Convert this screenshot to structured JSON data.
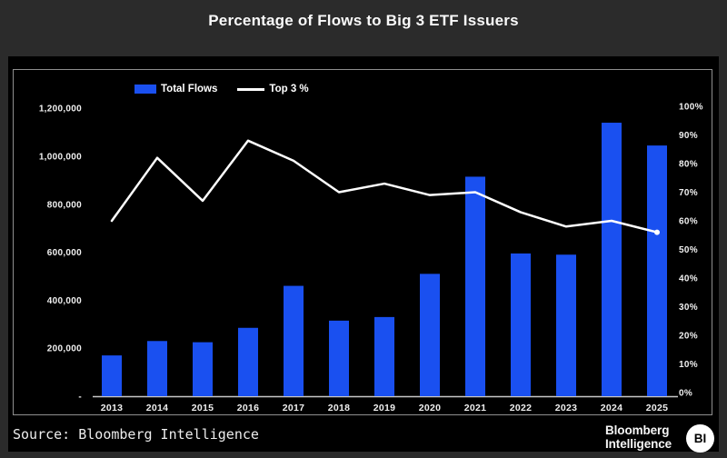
{
  "title": "Percentage of Flows to Big 3 ETF Issuers",
  "legend": {
    "bars_label": "Total Flows",
    "line_label": "Top 3 %"
  },
  "chart_data": {
    "type": "bar+line combo",
    "categories": [
      "2013",
      "2014",
      "2015",
      "2016",
      "2017",
      "2018",
      "2019",
      "2020",
      "2021",
      "2022",
      "2023",
      "2024",
      "2025"
    ],
    "series": [
      {
        "name": "Total Flows",
        "type": "bar",
        "axis": "left",
        "values": [
          170000,
          230000,
          225000,
          285000,
          460000,
          315000,
          330000,
          510000,
          915000,
          595000,
          590000,
          1140000,
          1045000
        ]
      },
      {
        "name": "Top 3 %",
        "type": "line",
        "axis": "right",
        "values": [
          60,
          82,
          67,
          88,
          81,
          70,
          73,
          69,
          70,
          63,
          58,
          60,
          56
        ]
      }
    ],
    "left_axis": {
      "tick_labels": [
        "1,200,000",
        "1,000,000",
        "800,000",
        "600,000",
        "400,000",
        "200,000",
        "-"
      ],
      "tick_values": [
        1200000,
        1000000,
        800000,
        600000,
        400000,
        200000,
        0
      ],
      "range": [
        0,
        1200000
      ]
    },
    "right_axis": {
      "tick_labels": [
        "100%",
        "90%",
        "80%",
        "70%",
        "60%",
        "50%",
        "40%",
        "30%",
        "20%",
        "10%",
        "0%"
      ],
      "tick_values": [
        100,
        90,
        80,
        70,
        60,
        50,
        40,
        30,
        20,
        10,
        0
      ],
      "range": [
        0,
        100
      ]
    },
    "grid": false,
    "legend_position": "top"
  },
  "footer": {
    "source": "Source: Bloomberg Intelligence",
    "logo_line1": "Bloomberg",
    "logo_line2": "Intelligence",
    "logo_badge": "BI"
  },
  "colors": {
    "bar": "#1a50f0",
    "line": "#ffffff",
    "page_bg": "#2b2b2b",
    "card_bg": "#000000",
    "panel_border": "#8f8f8f",
    "axis_line": "#c8c8c8",
    "tick_text": "#f0f0f0"
  }
}
